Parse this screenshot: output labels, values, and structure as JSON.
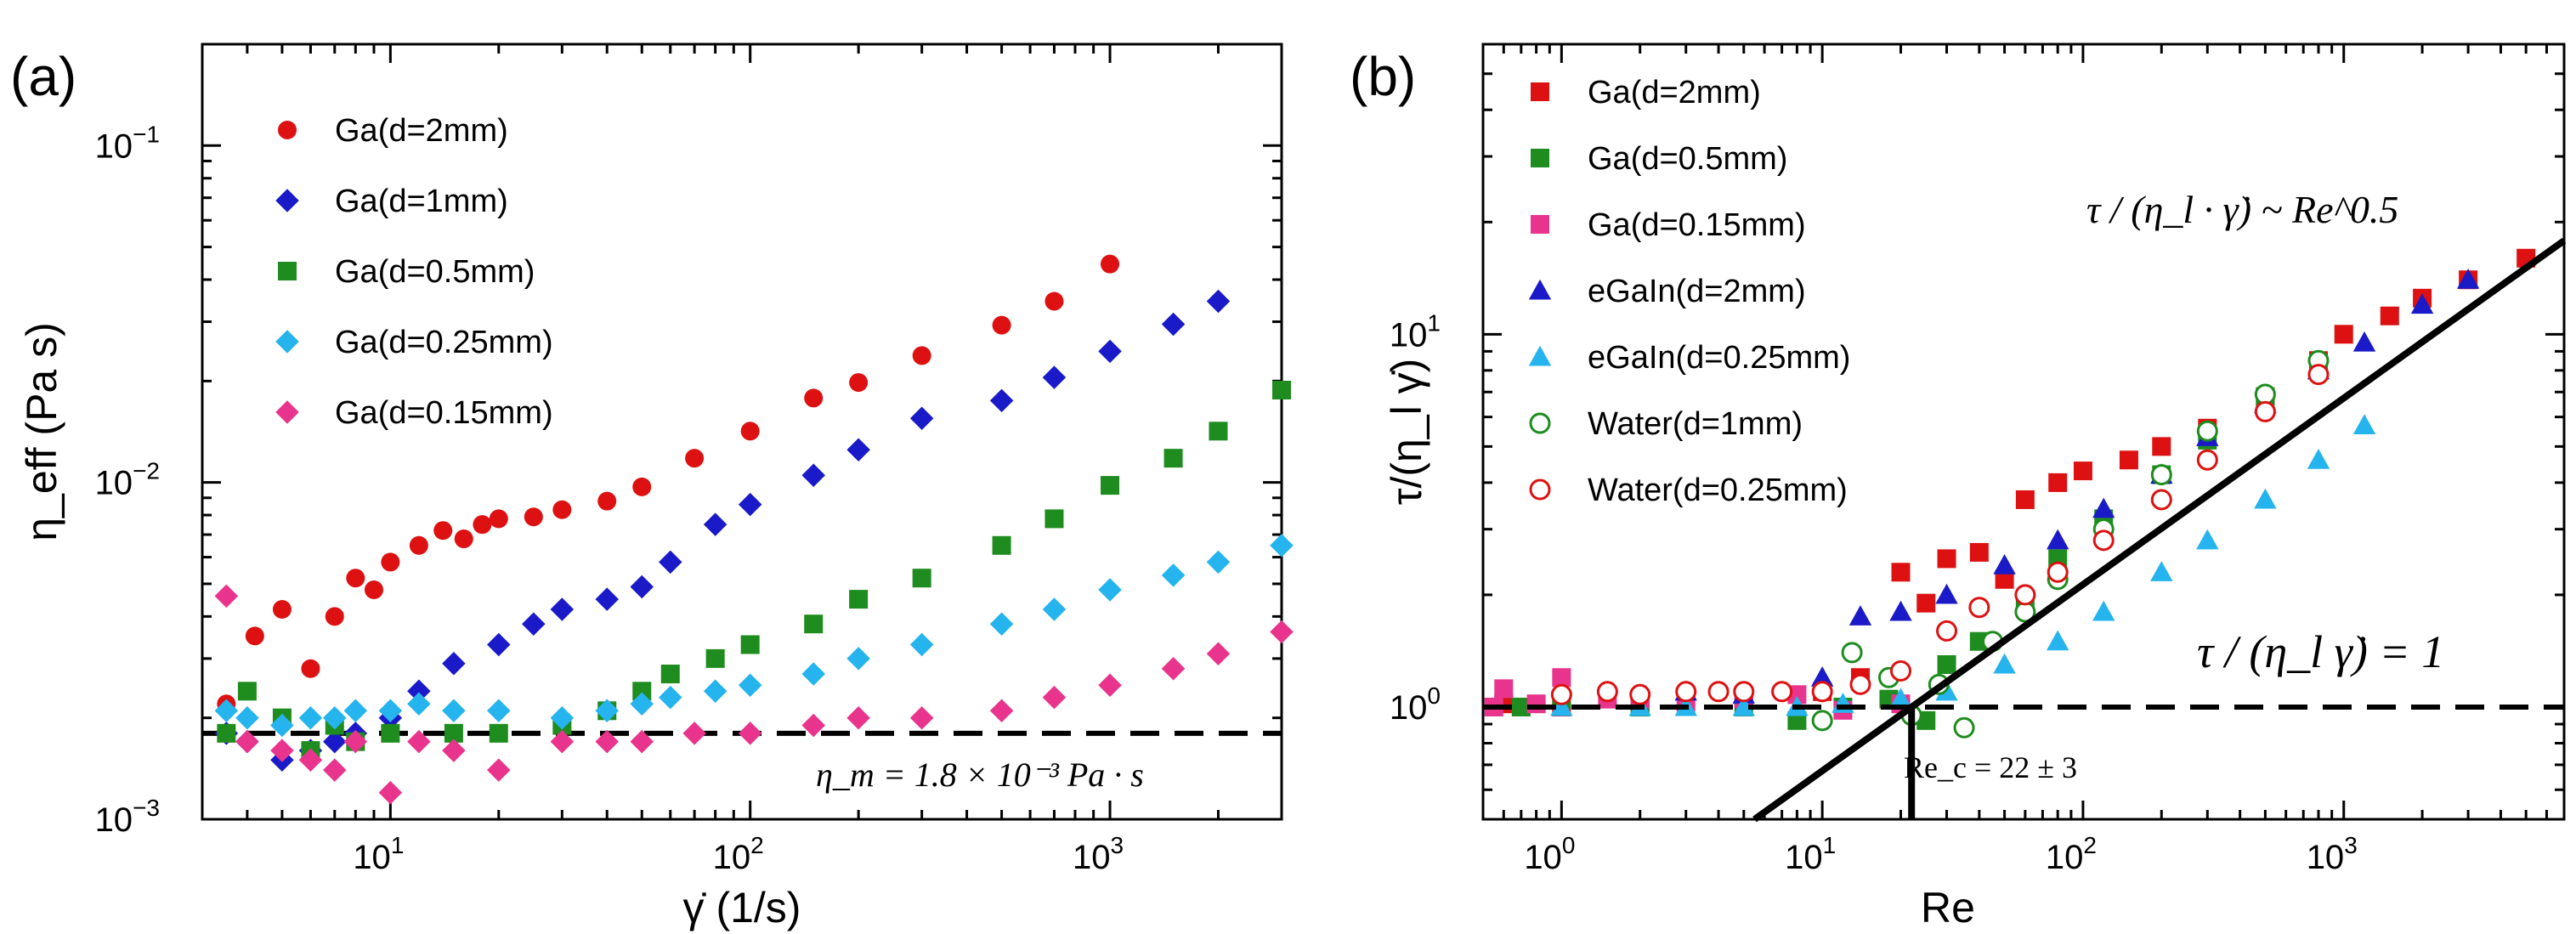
{
  "panels": {
    "a": {
      "label": "(a)"
    },
    "b": {
      "label": "(b)"
    }
  },
  "annotations": {
    "a_viscosity": "η_m = 1.8 × 10⁻³ Pa · s",
    "b_scaling_lhs": "τ / (η_l · γ̇) ~ Re^0.5",
    "b_unity": "τ / (η_l γ̇) = 1",
    "b_critical": "Re_c = 22 ± 3"
  },
  "chart_data": [
    {
      "id": "a",
      "type": "scatter",
      "xscale": "log",
      "yscale": "log",
      "xlim": [
        3,
        3000
      ],
      "ylim": [
        0.001,
        0.2
      ],
      "xlabel": "γ̇ (1/s)",
      "ylabel": "η_eff (Pa s)",
      "xticks": [
        {
          "value": 10,
          "base": "10",
          "exp": "1"
        },
        {
          "value": 100,
          "base": "10",
          "exp": "2"
        },
        {
          "value": 1000,
          "base": "10",
          "exp": "3"
        }
      ],
      "yticks": [
        {
          "value": 0.001,
          "base": "10",
          "exp": "−3"
        },
        {
          "value": 0.01,
          "base": "10",
          "exp": "−2"
        },
        {
          "value": 0.1,
          "base": "10",
          "exp": "−1"
        }
      ],
      "legend_position": "top-left",
      "reference_line": {
        "style": "dashed",
        "y": 0.0018
      },
      "series": [
        {
          "name": "Ga(d=2mm)",
          "marker": "circle",
          "color": "#dd1111",
          "filled": true,
          "x": [
            3.5,
            4.2,
            5,
            6,
            7,
            8,
            9,
            10,
            12,
            14,
            16,
            18,
            20,
            25,
            30,
            40,
            50,
            70,
            100,
            150,
            200,
            300,
            500,
            700,
            1000
          ],
          "y": [
            0.0022,
            0.0035,
            0.0042,
            0.0028,
            0.004,
            0.0052,
            0.0048,
            0.0058,
            0.0065,
            0.0072,
            0.0068,
            0.0075,
            0.0078,
            0.0079,
            0.0083,
            0.0088,
            0.0097,
            0.0118,
            0.0142,
            0.0178,
            0.0198,
            0.0238,
            0.0293,
            0.0345,
            0.0445
          ]
        },
        {
          "name": "Ga(d=1mm)",
          "marker": "diamond",
          "color": "#1a1ac8",
          "filled": true,
          "x": [
            3.5,
            4,
            5,
            6,
            7,
            8,
            10,
            12,
            15,
            20,
            25,
            30,
            40,
            50,
            60,
            80,
            100,
            150,
            200,
            300,
            500,
            700,
            1000,
            1500,
            2000
          ],
          "y": [
            0.0018,
            0.0017,
            0.0015,
            0.0016,
            0.0017,
            0.0018,
            0.002,
            0.0024,
            0.0029,
            0.0033,
            0.0038,
            0.0042,
            0.0045,
            0.0049,
            0.0058,
            0.0075,
            0.0086,
            0.0105,
            0.0125,
            0.0155,
            0.0175,
            0.0205,
            0.0245,
            0.0295,
            0.0345
          ]
        },
        {
          "name": "Ga(d=0.5mm)",
          "marker": "square",
          "color": "#1e8c1e",
          "filled": true,
          "x": [
            3.5,
            4,
            5,
            6,
            7,
            8,
            10,
            15,
            20,
            30,
            40,
            50,
            60,
            80,
            100,
            150,
            200,
            300,
            500,
            700,
            1000,
            1500,
            2000,
            3000
          ],
          "y": [
            0.0018,
            0.0024,
            0.002,
            0.0016,
            0.0019,
            0.0017,
            0.0018,
            0.0018,
            0.0018,
            0.0019,
            0.0021,
            0.0024,
            0.0027,
            0.003,
            0.0033,
            0.0038,
            0.0045,
            0.0052,
            0.0065,
            0.0078,
            0.0098,
            0.0118,
            0.0142,
            0.0188
          ]
        },
        {
          "name": "Ga(d=0.25mm)",
          "marker": "diamond",
          "color": "#25b4ee",
          "filled": true,
          "x": [
            3.5,
            4,
            5,
            6,
            7,
            8,
            10,
            12,
            15,
            20,
            30,
            40,
            50,
            60,
            80,
            100,
            150,
            200,
            300,
            500,
            700,
            1000,
            1500,
            2000,
            3000
          ],
          "y": [
            0.0021,
            0.002,
            0.0019,
            0.002,
            0.002,
            0.0021,
            0.0021,
            0.0022,
            0.0021,
            0.0021,
            0.002,
            0.0021,
            0.0022,
            0.0023,
            0.0024,
            0.0025,
            0.0027,
            0.003,
            0.0033,
            0.0038,
            0.0042,
            0.0048,
            0.0053,
            0.0058,
            0.0065
          ]
        },
        {
          "name": "Ga(d=0.15mm)",
          "marker": "diamond",
          "color": "#e8348c",
          "filled": true,
          "x": [
            3.5,
            4,
            5,
            6,
            7,
            8,
            10,
            12,
            15,
            20,
            30,
            40,
            50,
            70,
            100,
            150,
            200,
            300,
            500,
            700,
            1000,
            1500,
            2000,
            3000
          ],
          "y": [
            0.0046,
            0.0017,
            0.0016,
            0.0015,
            0.0014,
            0.0017,
            0.0012,
            0.0017,
            0.0016,
            0.0014,
            0.0017,
            0.0017,
            0.0017,
            0.0018,
            0.0018,
            0.0019,
            0.002,
            0.002,
            0.0021,
            0.0023,
            0.0025,
            0.0028,
            0.0031,
            0.0036
          ]
        }
      ]
    },
    {
      "id": "b",
      "type": "scatter",
      "xscale": "log",
      "yscale": "log",
      "xlim": [
        0.5,
        7000
      ],
      "ylim": [
        0.5,
        60
      ],
      "xlabel": "Re",
      "ylabel": "τ/(η_l γ̇)",
      "xticks": [
        {
          "value": 1,
          "base": "10",
          "exp": "0"
        },
        {
          "value": 10,
          "base": "10",
          "exp": "1"
        },
        {
          "value": 100,
          "base": "10",
          "exp": "2"
        },
        {
          "value": 1000,
          "base": "10",
          "exp": "3"
        }
      ],
      "yticks": [
        {
          "value": 1,
          "base": "10",
          "exp": "0"
        },
        {
          "value": 10,
          "base": "10",
          "exp": "1"
        }
      ],
      "legend_position": "top-left",
      "reference_lines": [
        {
          "style": "dashed",
          "y": 1
        },
        {
          "style": "solid",
          "kind": "power-law",
          "x0": 22,
          "y0": 1,
          "exponent": 0.5
        },
        {
          "style": "solid",
          "kind": "vertical",
          "x": 22,
          "y_to": 1
        }
      ],
      "series": [
        {
          "name": "Ga(d=2mm)",
          "marker": "square",
          "color": "#dd1111",
          "filled": true,
          "x": [
            0.6,
            1,
            2,
            5,
            10,
            14,
            20,
            25,
            30,
            40,
            50,
            60,
            80,
            100,
            150,
            200,
            300,
            500,
            800,
            1000,
            1500,
            2000,
            3000,
            5000
          ],
          "y": [
            1.02,
            1.0,
            1.0,
            1.05,
            1.1,
            1.2,
            2.3,
            1.9,
            2.5,
            2.6,
            2.2,
            3.6,
            4.0,
            4.3,
            4.6,
            5.0,
            5.6,
            6.8,
            8.5,
            10.0,
            11.2,
            12.5,
            14.0,
            16.0
          ]
        },
        {
          "name": "Ga(d=0.5mm)",
          "marker": "square",
          "color": "#1e8c1e",
          "filled": true,
          "x": [
            0.7,
            1,
            2,
            5,
            8,
            12,
            18,
            25,
            30,
            40,
            60,
            80,
            120,
            200,
            300,
            500,
            800
          ],
          "y": [
            1.0,
            1.05,
            1.0,
            1.0,
            0.92,
            1.0,
            1.05,
            0.92,
            1.3,
            1.5,
            1.9,
            2.5,
            3.2,
            4.2,
            5.2,
            6.8,
            8.3
          ]
        },
        {
          "name": "Ga(d=0.15mm)",
          "marker": "square",
          "color": "#e8348c",
          "filled": true,
          "x": [
            0.55,
            0.6,
            0.8,
            1,
            1.5,
            2,
            3,
            5,
            8,
            12,
            20
          ],
          "y": [
            1.0,
            1.12,
            1.02,
            1.2,
            1.05,
            1.05,
            1.03,
            1.05,
            1.08,
            0.98,
            1.02
          ]
        },
        {
          "name": "eGaIn(d=2mm)",
          "marker": "triangle",
          "color": "#1a1ac8",
          "filled": true,
          "x": [
            3,
            5,
            10,
            14,
            20,
            30,
            50,
            80,
            120,
            200,
            300,
            500,
            800,
            1200,
            2000,
            3000
          ],
          "y": [
            1.1,
            1.08,
            1.2,
            1.75,
            1.8,
            2.0,
            2.4,
            2.8,
            3.4,
            4.2,
            5.3,
            6.5,
            8.0,
            9.5,
            12.0,
            14.0
          ]
        },
        {
          "name": "eGaIn(d=0.25mm)",
          "marker": "triangle",
          "color": "#25b4ee",
          "filled": true,
          "x": [
            1,
            2,
            3,
            5,
            8,
            12,
            20,
            30,
            50,
            80,
            120,
            200,
            300,
            500,
            800,
            1200
          ],
          "y": [
            1.0,
            1.0,
            1.0,
            1.0,
            1.0,
            1.02,
            1.05,
            1.1,
            1.3,
            1.5,
            1.8,
            2.3,
            2.8,
            3.6,
            4.6,
            5.7
          ]
        },
        {
          "name": "Water(d=1mm)",
          "marker": "circle",
          "color": "#1e8c1e",
          "filled": false,
          "x": [
            10,
            13,
            18,
            22,
            28,
            35,
            45,
            60,
            80,
            120,
            200,
            300,
            500,
            800
          ],
          "y": [
            0.92,
            1.4,
            1.2,
            0.95,
            1.15,
            0.88,
            1.5,
            1.8,
            2.2,
            3.0,
            4.2,
            5.5,
            6.9,
            8.5
          ]
        },
        {
          "name": "Water(d=0.25mm)",
          "marker": "circle",
          "color": "#dd1111",
          "filled": false,
          "x": [
            1,
            1.5,
            2,
            3,
            4,
            5,
            7,
            10,
            14,
            20,
            30,
            40,
            60,
            80,
            120,
            200,
            300,
            500,
            800
          ],
          "y": [
            1.08,
            1.1,
            1.08,
            1.1,
            1.1,
            1.1,
            1.1,
            1.1,
            1.15,
            1.25,
            1.6,
            1.85,
            2.0,
            2.3,
            2.8,
            3.6,
            4.6,
            6.2,
            7.8
          ]
        }
      ]
    }
  ]
}
